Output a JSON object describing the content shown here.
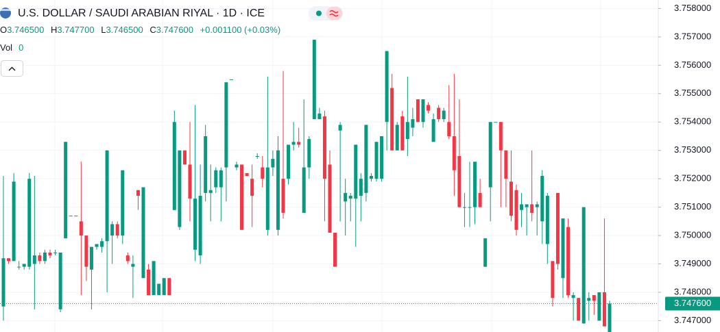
{
  "chart_data": {
    "type": "candlestick",
    "title": "U.S. DOLLAR / SAUDI ARABIAN RIYAL · 1D · ICE",
    "legend": {
      "open_label": "O",
      "open": "3.746500",
      "high_label": "H",
      "high": "3.747700",
      "low_label": "L",
      "low": "3.746500",
      "close_label": "C",
      "close": "3.747600",
      "change": "+0.001100 (+0.03%)",
      "volume_label": "Vol",
      "volume": "0"
    },
    "up_color": "#089981",
    "down_color": "#f23645",
    "ylim": [
      3.7466,
      3.7583
    ],
    "yticks": [
      {
        "value": 3.747,
        "label": "3.747000"
      },
      {
        "value": 3.748,
        "label": "3.748000"
      },
      {
        "value": 3.749,
        "label": "3.749000"
      },
      {
        "value": 3.75,
        "label": "3.750000"
      },
      {
        "value": 3.751,
        "label": "3.751000"
      },
      {
        "value": 3.752,
        "label": "3.752000"
      },
      {
        "value": 3.753,
        "label": "3.753000"
      },
      {
        "value": 3.754,
        "label": "3.754000"
      },
      {
        "value": 3.755,
        "label": "3.755000"
      },
      {
        "value": 3.756,
        "label": "3.756000"
      },
      {
        "value": 3.757,
        "label": "3.757000"
      },
      {
        "value": 3.758,
        "label": "3.758000"
      }
    ],
    "last_price": {
      "value": 3.7476,
      "label": "3.747600"
    },
    "grid": true,
    "open": [
      3.7475,
      3.7492,
      3.7491,
      3.7489,
      3.7489,
      3.7489,
      3.749,
      3.7493,
      3.7491,
      3.7494,
      3.7494,
      3.7474,
      3.7499,
      3.7507,
      3.7507,
      3.7505,
      3.75,
      3.7488,
      3.7496,
      3.7496,
      3.7498,
      3.75,
      3.7504,
      3.75,
      3.7493,
      3.7489,
      3.7516,
      3.7485,
      3.7488,
      3.7479,
      3.7479,
      3.7479,
      3.7485,
      3.7509,
      3.7503,
      3.753,
      3.7525,
      3.7495,
      3.7493,
      3.7515,
      3.7515,
      3.7517,
      3.7517,
      3.7524,
      3.7555,
      3.7524,
      3.7525,
      3.7522,
      3.752,
      3.7528,
      3.7524,
      3.7502,
      3.7524,
      3.7502,
      3.752,
      3.752,
      3.7532,
      3.7533,
      3.7508,
      3.7524,
      3.7541,
      3.7541,
      3.7542,
      3.7525,
      3.7501,
      3.7537,
      3.7512,
      3.7513,
      3.7513,
      3.7514,
      3.7515,
      3.752,
      3.752,
      3.752,
      3.754,
      3.7552,
      3.753,
      3.7542,
      3.7534,
      3.7538,
      3.7548,
      3.754,
      3.7546,
      3.7533,
      3.7545,
      3.7541,
      3.754,
      3.7535,
      3.7528,
      3.751,
      3.751,
      3.751,
      3.7515,
      3.7489,
      3.7517,
      3.754,
      3.754,
      3.753,
      3.7519,
      3.7516,
      3.7509,
      3.751,
      3.7511,
      3.751,
      3.7505,
      3.7497,
      3.7491,
      3.7515,
      3.7485,
      3.7503,
      3.7478,
      3.7478,
      3.7469,
      3.7477,
      3.7479,
      3.747,
      3.748,
      3.7465
    ],
    "high": [
      3.7521,
      3.7492,
      3.7522,
      3.7491,
      3.749,
      3.7522,
      3.7521,
      3.7494,
      3.7495,
      3.7495,
      3.7495,
      3.7494,
      3.7533,
      3.7507,
      3.7507,
      3.7526,
      3.75,
      3.7496,
      3.7497,
      3.7499,
      3.753,
      3.7505,
      3.7505,
      3.7523,
      3.7494,
      3.7493,
      3.7516,
      3.7517,
      3.749,
      3.7491,
      3.7483,
      3.7485,
      3.7485,
      3.7544,
      3.753,
      3.753,
      3.754,
      3.7546,
      3.7525,
      3.7539,
      3.7525,
      3.7524,
      3.7524,
      3.7554,
      3.7555,
      3.7526,
      3.7525,
      3.7522,
      3.7525,
      3.7529,
      3.7528,
      3.7556,
      3.753,
      3.7535,
      3.7558,
      3.7532,
      3.754,
      3.7538,
      3.7548,
      3.7535,
      3.7569,
      3.7545,
      3.7544,
      3.753,
      3.7501,
      3.754,
      3.752,
      3.7515,
      3.7532,
      3.7522,
      3.7539,
      3.7522,
      3.7533,
      3.7535,
      3.7565,
      3.7557,
      3.754,
      3.7544,
      3.7556,
      3.7545,
      3.7548,
      3.7548,
      3.7547,
      3.7543,
      3.7546,
      3.7545,
      3.7553,
      3.7557,
      3.7548,
      3.7515,
      3.7526,
      3.7526,
      3.752,
      3.7499,
      3.754,
      3.754,
      3.754,
      3.753,
      3.753,
      3.7518,
      3.7515,
      3.7511,
      3.753,
      3.7512,
      3.7523,
      3.7515,
      3.7491,
      3.7515,
      3.7506,
      3.7506,
      3.748,
      3.7478,
      3.751,
      3.748,
      3.7479,
      3.748,
      3.7506,
      3.7477
    ],
    "low": [
      3.747,
      3.749,
      3.7491,
      3.7488,
      3.7488,
      3.7488,
      3.7474,
      3.749,
      3.749,
      3.7492,
      3.7493,
      3.7473,
      3.7499,
      3.7507,
      3.7507,
      3.7479,
      3.7484,
      3.7474,
      3.7495,
      3.7494,
      3.748,
      3.749,
      3.7499,
      3.7497,
      3.749,
      3.7478,
      3.7509,
      3.7485,
      3.7479,
      3.7479,
      3.7479,
      3.7479,
      3.7479,
      3.7509,
      3.7502,
      3.7525,
      3.7505,
      3.7491,
      3.749,
      3.7512,
      3.7505,
      3.7515,
      3.7505,
      3.7512,
      3.7555,
      3.7523,
      3.7502,
      3.7521,
      3.7503,
      3.7527,
      3.7517,
      3.75,
      3.7521,
      3.75,
      3.7506,
      3.7518,
      3.753,
      3.7531,
      3.7508,
      3.752,
      3.7541,
      3.7541,
      3.7505,
      3.7501,
      3.7489,
      3.7505,
      3.75,
      3.7505,
      3.7496,
      3.7505,
      3.7512,
      3.7519,
      3.7519,
      3.7519,
      3.753,
      3.753,
      3.753,
      3.753,
      3.7528,
      3.7535,
      3.754,
      3.7538,
      3.7543,
      3.7533,
      3.754,
      3.754,
      3.7534,
      3.7514,
      3.751,
      3.7503,
      3.7503,
      3.7504,
      3.751,
      3.7489,
      3.7505,
      3.754,
      3.751,
      3.751,
      3.7505,
      3.75,
      3.7503,
      3.75,
      3.7505,
      3.75,
      3.7497,
      3.749,
      3.7475,
      3.7488,
      3.7478,
      3.7478,
      3.747,
      3.747,
      3.7469,
      3.747,
      3.7472,
      3.747,
      3.7468,
      3.7465
    ],
    "close": [
      3.7492,
      3.7491,
      3.7519,
      3.7489,
      3.749,
      3.752,
      3.7493,
      3.7491,
      3.7494,
      3.7493,
      3.7494,
      3.7494,
      3.7533,
      3.7507,
      3.7507,
      3.75,
      3.7489,
      3.7496,
      3.7497,
      3.7498,
      3.753,
      3.7504,
      3.75,
      3.7523,
      3.7491,
      3.749,
      3.7514,
      3.7517,
      3.7479,
      3.7491,
      3.7483,
      3.7485,
      3.7479,
      3.754,
      3.753,
      3.7525,
      3.7513,
      3.7513,
      3.7514,
      3.7535,
      3.7516,
      3.7523,
      3.7523,
      3.7554,
      3.7555,
      3.7525,
      3.7502,
      3.7521,
      3.7514,
      3.7528,
      3.752,
      3.7524,
      3.7527,
      3.753,
      3.7508,
      3.7532,
      3.7533,
      3.7532,
      3.7524,
      3.7534,
      3.7569,
      3.7543,
      3.752,
      3.7501,
      3.7489,
      3.7539,
      3.7515,
      3.7514,
      3.7532,
      3.752,
      3.7539,
      3.7521,
      3.7533,
      3.7535,
      3.7565,
      3.753,
      3.7539,
      3.753,
      3.754,
      3.7541,
      3.754,
      3.7548,
      3.7544,
      3.7541,
      3.7541,
      3.7544,
      3.7535,
      3.7523,
      3.751,
      3.751,
      3.751,
      3.7526,
      3.751,
      3.7499,
      3.754,
      3.754,
      3.753,
      3.752,
      3.7507,
      3.7502,
      3.7511,
      3.7511,
      3.7508,
      3.7511,
      3.7521,
      3.7514,
      3.7478,
      3.749,
      3.7506,
      3.7479,
      3.7479,
      3.747,
      3.751,
      3.7478,
      3.7477,
      3.748,
      3.7468,
      3.7476
    ]
  }
}
